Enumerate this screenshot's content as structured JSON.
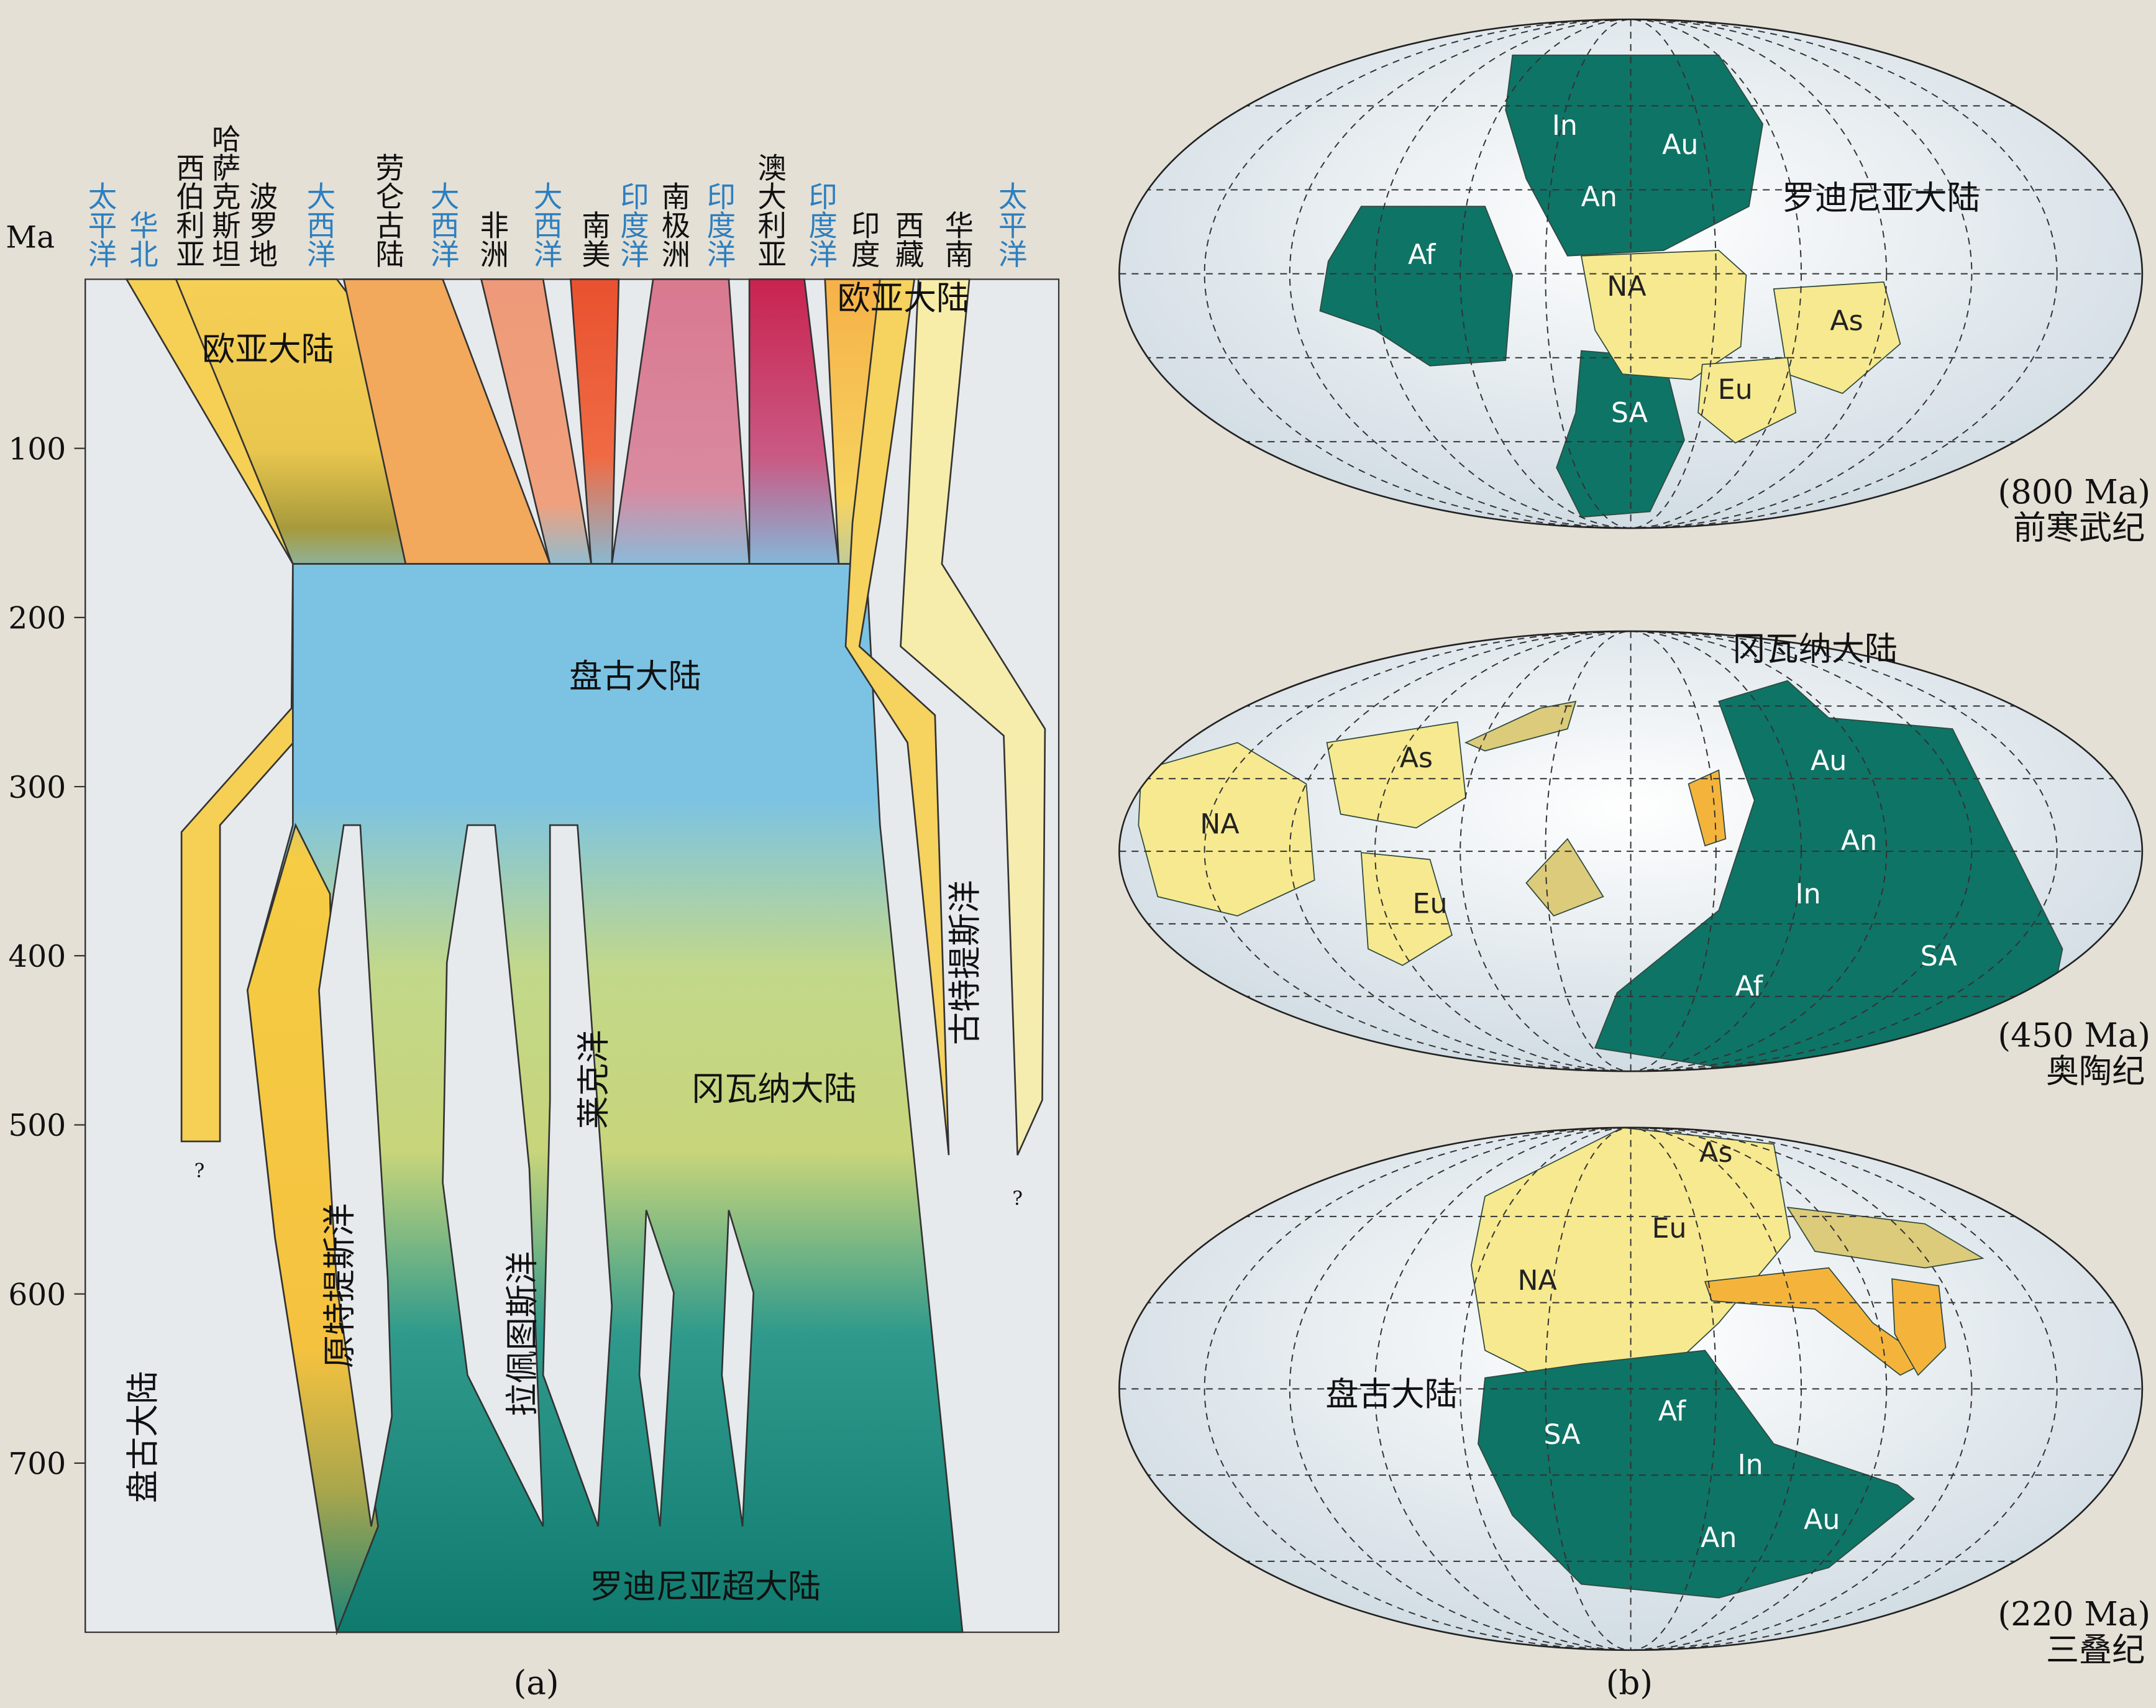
{
  "panel_a": {
    "y_label": "Ma",
    "ylim": [
      0,
      800
    ],
    "yticks": [
      100,
      200,
      300,
      400,
      500,
      600,
      700
    ],
    "headers": [
      {
        "text": "太平洋",
        "color": "#2c7fc0"
      },
      {
        "text": "华北",
        "color": "#2c7fc0"
      },
      {
        "text": "西伯利亚",
        "color": "#111111"
      },
      {
        "text": "哈萨克斯坦",
        "color": "#111111"
      },
      {
        "text": "波罗地",
        "color": "#111111"
      },
      {
        "text": "大西洋",
        "color": "#2c7fc0"
      },
      {
        "text": "劳仑古陆",
        "color": "#111111"
      },
      {
        "text": "大西洋",
        "color": "#2c7fc0"
      },
      {
        "text": "非洲",
        "color": "#111111"
      },
      {
        "text": "大西洋",
        "color": "#2c7fc0"
      },
      {
        "text": "南美",
        "color": "#111111"
      },
      {
        "text": "印度洋",
        "color": "#2c7fc0"
      },
      {
        "text": "南极洲",
        "color": "#111111"
      },
      {
        "text": "印度洋",
        "color": "#2c7fc0"
      },
      {
        "text": "澳大利亚",
        "color": "#111111"
      },
      {
        "text": "印度洋",
        "color": "#2c7fc0"
      },
      {
        "text": "印度",
        "color": "#111111"
      },
      {
        "text": "西藏",
        "color": "#111111"
      },
      {
        "text": "华南",
        "color": "#111111"
      },
      {
        "text": "太平洋",
        "color": "#2c7fc0"
      }
    ],
    "labels": [
      "欧亚大陆",
      "欧亚大陆",
      "盘古大陆",
      "冈瓦纳大陆",
      "罗迪尼亚超大陆",
      "原特提斯洋",
      "拉佩图斯洋",
      "莱克洋",
      "古特提斯洋",
      "盘古大陆",
      "?",
      "?"
    ],
    "caption": "(a)"
  },
  "panel_b": {
    "maps": [
      {
        "name": "罗迪尼亚大陆",
        "age": "(800 Ma)",
        "era": "前寒武纪",
        "continents": [
          "In",
          "Au",
          "An",
          "Af",
          "NA",
          "As",
          "Eu",
          "SA"
        ]
      },
      {
        "name": "冈瓦纳大陆",
        "age": "(450 Ma)",
        "era": "奥陶纪",
        "continents": [
          "As",
          "NA",
          "Eu",
          "Au",
          "An",
          "In",
          "SA",
          "Af"
        ]
      },
      {
        "name": "盘古大陆",
        "age": "(220 Ma)",
        "era": "三叠纪",
        "continents": [
          "As",
          "Eu",
          "NA",
          "SA",
          "Af",
          "In",
          "Au",
          "An"
        ]
      }
    ],
    "caption": "(b)"
  }
}
